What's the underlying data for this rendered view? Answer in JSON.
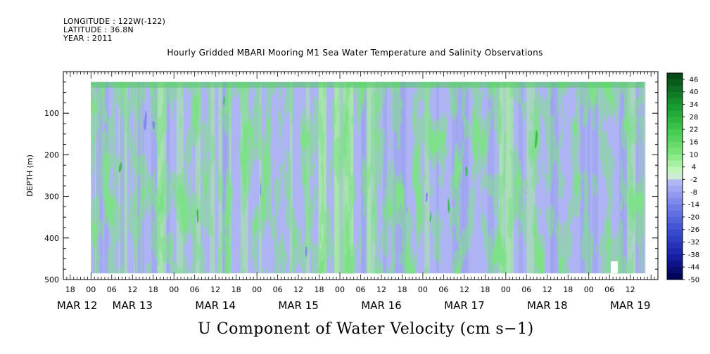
{
  "header": {
    "longitude": "LONGITUDE : 122W(-122)",
    "latitude": "LATITUDE : 36.8N",
    "year": "YEAR : 2011"
  },
  "chart_data": {
    "type": "heatmap",
    "title": "Hourly Gridded MBARI Mooring M1 Sea Water Temperature and Salinity Observations",
    "subtitle": "U Component of Water Velocity (cm s−1)",
    "ylabel": "DEPTH (m)",
    "xlabel": "",
    "y_inverted": true,
    "ylim": [
      500,
      0
    ],
    "y_ticks": [
      100,
      200,
      300,
      400,
      500
    ],
    "x_range_hours": [
      -8,
      164
    ],
    "data_range_hours": [
      0,
      160
    ],
    "data_depth_range": [
      25,
      485
    ],
    "hour_ticks": [
      {
        "h": -6,
        "label": "18"
      },
      {
        "h": 0,
        "label": "00"
      },
      {
        "h": 6,
        "label": "06"
      },
      {
        "h": 12,
        "label": "12"
      },
      {
        "h": 18,
        "label": "18"
      },
      {
        "h": 24,
        "label": "00"
      },
      {
        "h": 30,
        "label": "06"
      },
      {
        "h": 36,
        "label": "12"
      },
      {
        "h": 42,
        "label": "18"
      },
      {
        "h": 48,
        "label": "00"
      },
      {
        "h": 54,
        "label": "06"
      },
      {
        "h": 60,
        "label": "12"
      },
      {
        "h": 66,
        "label": "18"
      },
      {
        "h": 72,
        "label": "00"
      },
      {
        "h": 78,
        "label": "06"
      },
      {
        "h": 84,
        "label": "12"
      },
      {
        "h": 90,
        "label": "18"
      },
      {
        "h": 96,
        "label": "00"
      },
      {
        "h": 102,
        "label": "06"
      },
      {
        "h": 108,
        "label": "12"
      },
      {
        "h": 114,
        "label": "18"
      },
      {
        "h": 120,
        "label": "00"
      },
      {
        "h": 126,
        "label": "06"
      },
      {
        "h": 132,
        "label": "12"
      },
      {
        "h": 138,
        "label": "18"
      },
      {
        "h": 144,
        "label": "00"
      },
      {
        "h": 150,
        "label": "06"
      },
      {
        "h": 156,
        "label": "12"
      }
    ],
    "date_labels": [
      {
        "h": -4,
        "label": "MAR 12"
      },
      {
        "h": 12,
        "label": "MAR 13"
      },
      {
        "h": 36,
        "label": "MAR 14"
      },
      {
        "h": 60,
        "label": "MAR 15"
      },
      {
        "h": 84,
        "label": "MAR 16"
      },
      {
        "h": 108,
        "label": "MAR 17"
      },
      {
        "h": 132,
        "label": "MAR 18"
      },
      {
        "h": 156,
        "label": "MAR 19"
      }
    ],
    "colorbar": {
      "labels": [
        "46",
        "40",
        "34",
        "28",
        "22",
        "16",
        "10",
        "4",
        "-2",
        "-8",
        "-14",
        "-20",
        "-26",
        "-32",
        "-38",
        "-44",
        "-50"
      ],
      "min": -50,
      "max": 49,
      "step": 3
    }
  }
}
